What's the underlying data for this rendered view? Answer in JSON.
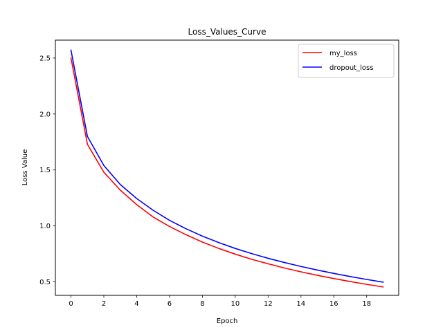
{
  "chart_data": {
    "type": "line",
    "title": "Loss_Values_Curve",
    "xlabel": "Epoch",
    "ylabel": "Loss Value",
    "xlim": [
      -0.95,
      19.95
    ],
    "ylim": [
      0.38,
      2.66
    ],
    "xticks": [
      0,
      2,
      4,
      6,
      8,
      10,
      12,
      14,
      16,
      18
    ],
    "yticks": [
      0.5,
      1.0,
      1.5,
      2.0,
      2.5
    ],
    "ytick_labels": [
      "0.5",
      "1.0",
      "1.5",
      "2.0",
      "2.5"
    ],
    "grid": false,
    "legend_position": "upper right",
    "x": [
      0,
      1,
      2,
      3,
      4,
      5,
      6,
      7,
      8,
      9,
      10,
      11,
      12,
      13,
      14,
      15,
      16,
      17,
      18,
      19
    ],
    "series": [
      {
        "name": "my_loss",
        "color": "#ff0000",
        "values": [
          2.5,
          1.73,
          1.48,
          1.32,
          1.19,
          1.08,
          0.995,
          0.922,
          0.856,
          0.799,
          0.748,
          0.702,
          0.662,
          0.624,
          0.59,
          0.559,
          0.53,
          0.503,
          0.478,
          0.455
        ]
      },
      {
        "name": "dropout_loss",
        "color": "#0000ff",
        "values": [
          2.57,
          1.8,
          1.54,
          1.37,
          1.245,
          1.14,
          1.05,
          0.975,
          0.909,
          0.851,
          0.799,
          0.753,
          0.711,
          0.673,
          0.638,
          0.606,
          0.576,
          0.548,
          0.522,
          0.498
        ]
      }
    ]
  }
}
